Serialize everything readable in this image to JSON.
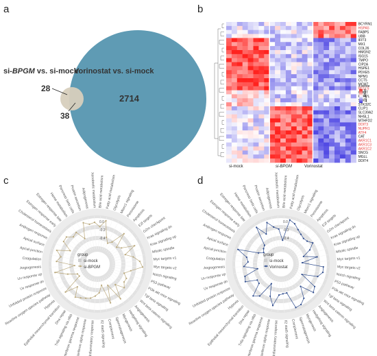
{
  "panels": {
    "a": "a",
    "b": "b",
    "c": "c",
    "d": "d"
  },
  "venn": {
    "left_label_prefix": "si-",
    "left_label_italic": "BPGM",
    "left_label_suffix": " vs. si-mock",
    "right_label": "Vorinostat vs. si-mock",
    "only_small": "28",
    "overlap": "38",
    "only_large": "2714",
    "colors": {
      "small": "#d7cfbd",
      "large": "#5f9bb4"
    }
  },
  "heatmap": {
    "column_groups": [
      "si-mock",
      "si-BPGM",
      "Vorinostat"
    ],
    "legend_title": "z-score",
    "legend_ticks": [
      "4",
      "2",
      "0",
      "-2",
      "-4"
    ],
    "genes": [
      {
        "name": "BCYRN1",
        "red": false
      },
      {
        "name": "HSPA5",
        "red": true
      },
      {
        "name": "FABP5",
        "red": false
      },
      {
        "name": "UBB",
        "red": false
      },
      {
        "name": "IFIT3",
        "red": false
      },
      {
        "name": "MX1",
        "red": false
      },
      {
        "name": "COL26",
        "red": false
      },
      {
        "name": "HMGN2",
        "red": false
      },
      {
        "name": "ISG15",
        "red": false
      },
      {
        "name": "TMPO",
        "red": false
      },
      {
        "name": "CIP2A",
        "red": false
      },
      {
        "name": "HSPE1",
        "red": false
      },
      {
        "name": "PDXE5",
        "red": false
      },
      {
        "name": "NPM1",
        "red": false
      },
      {
        "name": "CCT5",
        "red": false
      },
      {
        "name": "MCM7",
        "red": false
      },
      {
        "name": "HELLS",
        "red": true
      },
      {
        "name": "COMT",
        "red": false
      },
      {
        "name": "PURPL",
        "red": false
      },
      {
        "name": "SPP1",
        "red": false
      },
      {
        "name": "STK32C",
        "red": false
      },
      {
        "name": "CLIP1",
        "red": false
      },
      {
        "name": "SLC39A2",
        "red": false
      },
      {
        "name": "NHSL1",
        "red": false
      },
      {
        "name": "MTHFD2",
        "red": false
      },
      {
        "name": "DDIT3",
        "red": true
      },
      {
        "name": "NUPR1",
        "red": true
      },
      {
        "name": "ATF4",
        "red": true
      },
      {
        "name": "CAT",
        "red": false
      },
      {
        "name": "AKR1C1",
        "red": true
      },
      {
        "name": "AKR1C3",
        "red": true
      },
      {
        "name": "AKR1C2",
        "red": true
      },
      {
        "name": "SNCG",
        "red": false
      },
      {
        "name": "MGLL",
        "red": false
      },
      {
        "name": "DDIT4",
        "red": false
      }
    ],
    "colors": {
      "high": "#e8231f",
      "mid": "#ffffff",
      "low": "#3a32e0"
    }
  },
  "radar_c": {
    "legend_title": "group",
    "legend_items": [
      {
        "label": "si-mock",
        "italic_part": ""
      },
      {
        "label": "si-",
        "italic_part": "BPGM"
      }
    ],
    "line_color": "#b9a77a",
    "axis_ticks": [
      "0.0",
      "-0.2",
      "-0.4"
    ]
  },
  "radar_d": {
    "legend_title": "group",
    "legend_items": [
      {
        "label": "si-mock",
        "italic_part": ""
      },
      {
        "label": "Vorinostat",
        "italic_part": ""
      }
    ],
    "line_color": "#2c4a8c",
    "axis_ticks": [
      "0.0",
      "-0.2",
      "-0.4"
    ]
  },
  "hallmarks": [
    "Bile acid metabolism",
    "Fatty acid metabolism",
    "Glycolysis",
    "Mtorc1 signaling",
    "Peroxisome",
    "Apoptosis",
    "E2f targets",
    "G2m checkpoint",
    "Kras signaling dn",
    "Kras signaling up",
    "Mitotic spindle",
    "Myc targets v1",
    "Myc targets v2",
    "Notch signaling",
    "P53 pathway",
    "Pi3k akt mtor signaling",
    "Tgf beta signaling",
    "Wnt beta catenin signaling",
    "Angiogenesis",
    "Hedgehog signaling",
    "Myogenesis",
    "Spermatogenesis",
    "Complement",
    "Il2 stat5 signaling",
    "Inflammatory response",
    "Interferon alpha response",
    "Interferon gamma response",
    "Tnfa signaling via nfkb",
    "Dna repair",
    "Epithelial mesenchymal transition",
    "Hypoxia",
    "Reactive oxygen species pathway",
    "Unfolded protein response",
    "Uv response dn",
    "Uv response up",
    "Angiogenesis",
    "Coagulation",
    "Apical junction",
    "Apical surface",
    "Androgen response",
    "Cholesterol homeostasis",
    "Estrogen response early",
    "Estrogen response late",
    "Heme metabolism",
    "Pancreas beta cells",
    "Protein secretion",
    "Adipogenesis",
    "Xenobiotic metabolism"
  ]
}
